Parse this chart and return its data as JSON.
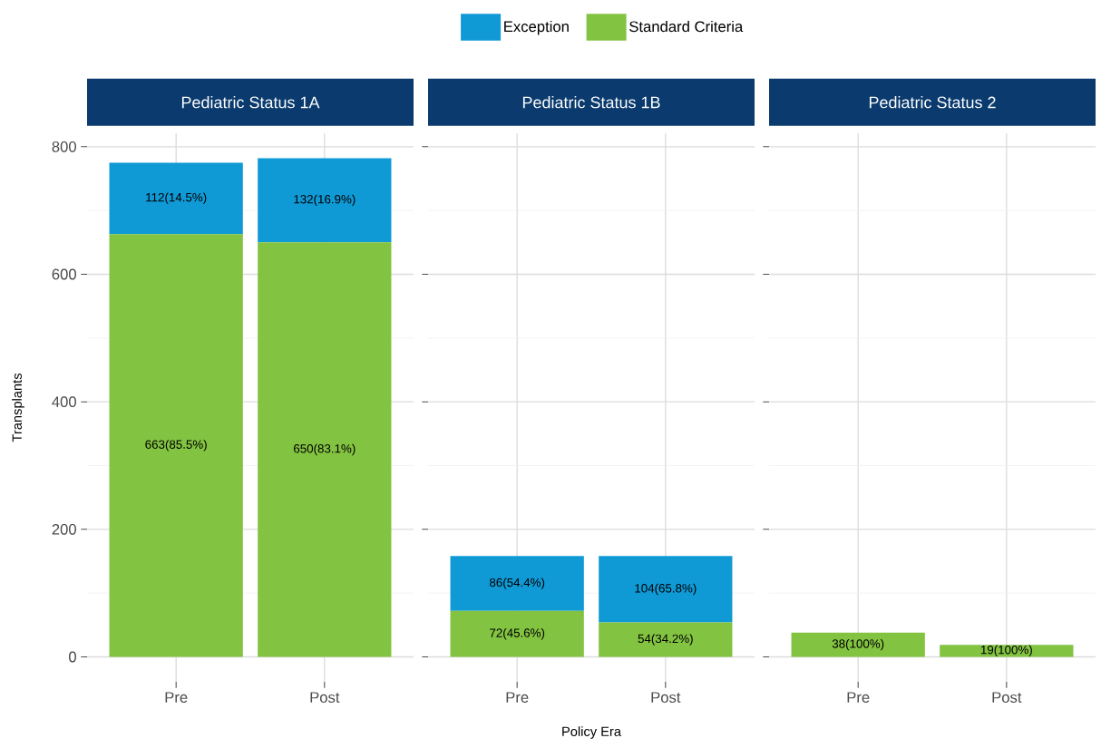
{
  "chart_data": [
    {
      "type": "bar",
      "title": "Pediatric Status 1A",
      "ylabel": "Transplants",
      "categories": [
        "Pre",
        "Post"
      ],
      "stacked": true,
      "ylim": [
        -39.1,
        821.1
      ],
      "yticks": [
        0,
        200,
        400,
        600,
        800
      ],
      "grid": true,
      "legend": "top",
      "series": [
        {
          "name": "Standard Criteria",
          "color": "#82c341",
          "values": [
            663,
            650
          ],
          "value_labels": [
            "663(85.5%)",
            "650(83.1%)"
          ]
        },
        {
          "name": "Exception",
          "color": "#0f9ad6",
          "values": [
            112,
            132
          ],
          "value_labels": [
            "112(14.5%)",
            "132(16.9%)"
          ]
        }
      ]
    },
    {
      "type": "bar",
      "title": "Pediatric Status 1B",
      "xlabel": "Policy Era",
      "categories": [
        "Pre",
        "Post"
      ],
      "stacked": true,
      "ylim": [
        -39.1,
        821.1
      ],
      "yticks": [
        0,
        200,
        400,
        600,
        800
      ],
      "grid": true,
      "tick_labels": "x",
      "series": [
        {
          "color": "#82c341",
          "values": [
            72,
            54
          ],
          "value_labels": [
            "72(45.6%)",
            "54(34.2%)"
          ]
        },
        {
          "color": "#0f9ad6",
          "values": [
            86,
            104
          ],
          "value_labels": [
            "86(54.4%)",
            "104(65.8%)"
          ]
        }
      ]
    },
    {
      "type": "bar",
      "title": "Pediatric Status 2",
      "categories": [
        "Pre",
        "Post"
      ],
      "stacked": true,
      "ylim": [
        -39.1,
        821.1
      ],
      "yticks": [
        0,
        200,
        400,
        600,
        800
      ],
      "grid": true,
      "tick_labels": "x",
      "series": [
        {
          "color": "#82c341",
          "values": [
            38,
            19
          ],
          "value_labels": [
            "38(100%)",
            "19(100%)"
          ]
        }
      ]
    }
  ]
}
